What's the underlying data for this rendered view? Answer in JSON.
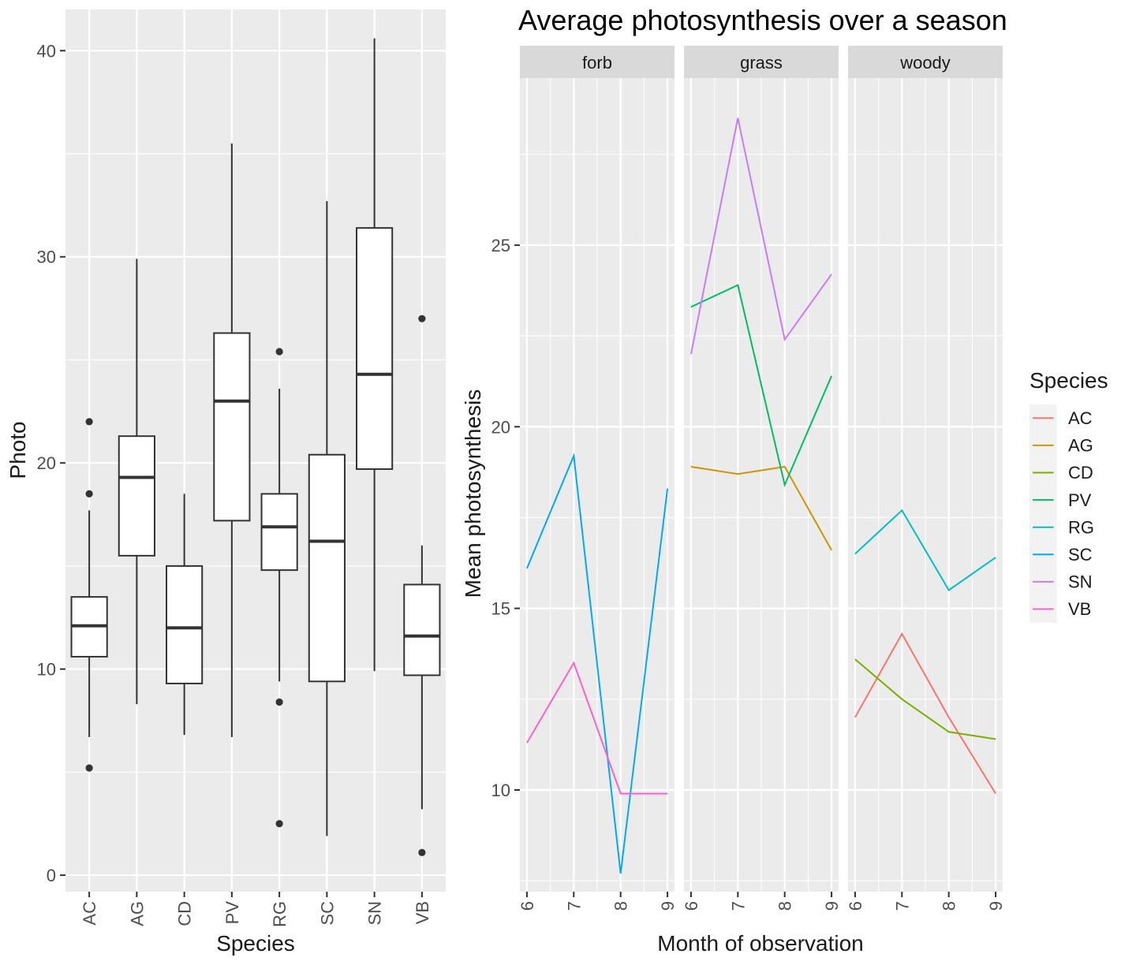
{
  "colors": {
    "panel_bg": "#EBEBEB",
    "strip_bg": "#D9D9D9",
    "grid_major": "#FFFFFF",
    "text": "#1A1A1A",
    "axis_text": "#4D4D4D",
    "box_outline": "#333333",
    "species": {
      "AC": "#F8766D",
      "AG": "#CD9600",
      "CD": "#7CAE00",
      "PV": "#00BE67",
      "RG": "#00BFC4",
      "SC": "#00A9FF",
      "SN": "#C77CFF",
      "VB": "#FF61CC"
    }
  },
  "chart_data": [
    {
      "type": "box",
      "title": "",
      "xlabel": "Species",
      "ylabel": "Photo",
      "ylim": [
        -0.8,
        42
      ],
      "yticks": [
        0,
        10,
        20,
        30,
        40
      ],
      "grid": true,
      "categories": [
        "AC",
        "AG",
        "CD",
        "PV",
        "RG",
        "SC",
        "SN",
        "VB"
      ],
      "boxes": [
        {
          "category": "AC",
          "whisker_low": 6.7,
          "q1": 10.6,
          "median": 12.1,
          "q3": 13.5,
          "whisker_high": 17.7,
          "outliers": [
            22.0,
            18.5,
            5.2
          ]
        },
        {
          "category": "AG",
          "whisker_low": 8.3,
          "q1": 15.5,
          "median": 19.3,
          "q3": 21.3,
          "whisker_high": 29.9,
          "outliers": []
        },
        {
          "category": "CD",
          "whisker_low": 6.8,
          "q1": 9.3,
          "median": 12.0,
          "q3": 15.0,
          "whisker_high": 18.5,
          "outliers": []
        },
        {
          "category": "PV",
          "whisker_low": 6.7,
          "q1": 17.2,
          "median": 23.0,
          "q3": 26.3,
          "whisker_high": 35.5,
          "outliers": []
        },
        {
          "category": "RG",
          "whisker_low": 9.4,
          "q1": 14.8,
          "median": 16.9,
          "q3": 18.5,
          "whisker_high": 23.6,
          "outliers": [
            25.4,
            8.4,
            2.5
          ]
        },
        {
          "category": "SC",
          "whisker_low": 1.9,
          "q1": 9.4,
          "median": 16.2,
          "q3": 20.4,
          "whisker_high": 32.7,
          "outliers": []
        },
        {
          "category": "SN",
          "whisker_low": 9.9,
          "q1": 19.7,
          "median": 24.3,
          "q3": 31.4,
          "whisker_high": 40.6,
          "outliers": []
        },
        {
          "category": "VB",
          "whisker_low": 3.2,
          "q1": 9.7,
          "median": 11.6,
          "q3": 14.1,
          "whisker_high": 16.0,
          "outliers": [
            27.0,
            1.1
          ]
        }
      ]
    },
    {
      "type": "line",
      "title": "Average photosynthesis over a season",
      "xlabel": "Month of observation",
      "ylabel": "Mean photosynthesis",
      "ylim": [
        7.2,
        29.6
      ],
      "yticks": [
        10,
        15,
        20,
        25
      ],
      "x": [
        6,
        7,
        8,
        9
      ],
      "grid": true,
      "legend": {
        "title": "Species",
        "position": "right",
        "entries": [
          "AC",
          "AG",
          "CD",
          "PV",
          "RG",
          "SC",
          "SN",
          "VB"
        ]
      },
      "facets": [
        {
          "label": "forb",
          "series": [
            {
              "name": "SC",
              "values": [
                16.1,
                19.2,
                7.7,
                18.3
              ]
            },
            {
              "name": "VB",
              "values": [
                11.3,
                13.5,
                9.9,
                9.9
              ]
            }
          ]
        },
        {
          "label": "grass",
          "series": [
            {
              "name": "AG",
              "values": [
                18.9,
                18.7,
                18.9,
                16.6
              ]
            },
            {
              "name": "PV",
              "values": [
                23.3,
                23.9,
                18.4,
                21.4
              ]
            },
            {
              "name": "SN",
              "values": [
                22.0,
                28.5,
                22.4,
                24.2
              ]
            }
          ]
        },
        {
          "label": "woody",
          "series": [
            {
              "name": "AC",
              "values": [
                12.0,
                14.3,
                12.0,
                9.9
              ]
            },
            {
              "name": "CD",
              "values": [
                13.6,
                12.5,
                11.6,
                11.4
              ]
            },
            {
              "name": "RG",
              "values": [
                16.5,
                17.7,
                15.5,
                16.4
              ]
            }
          ]
        }
      ]
    }
  ]
}
